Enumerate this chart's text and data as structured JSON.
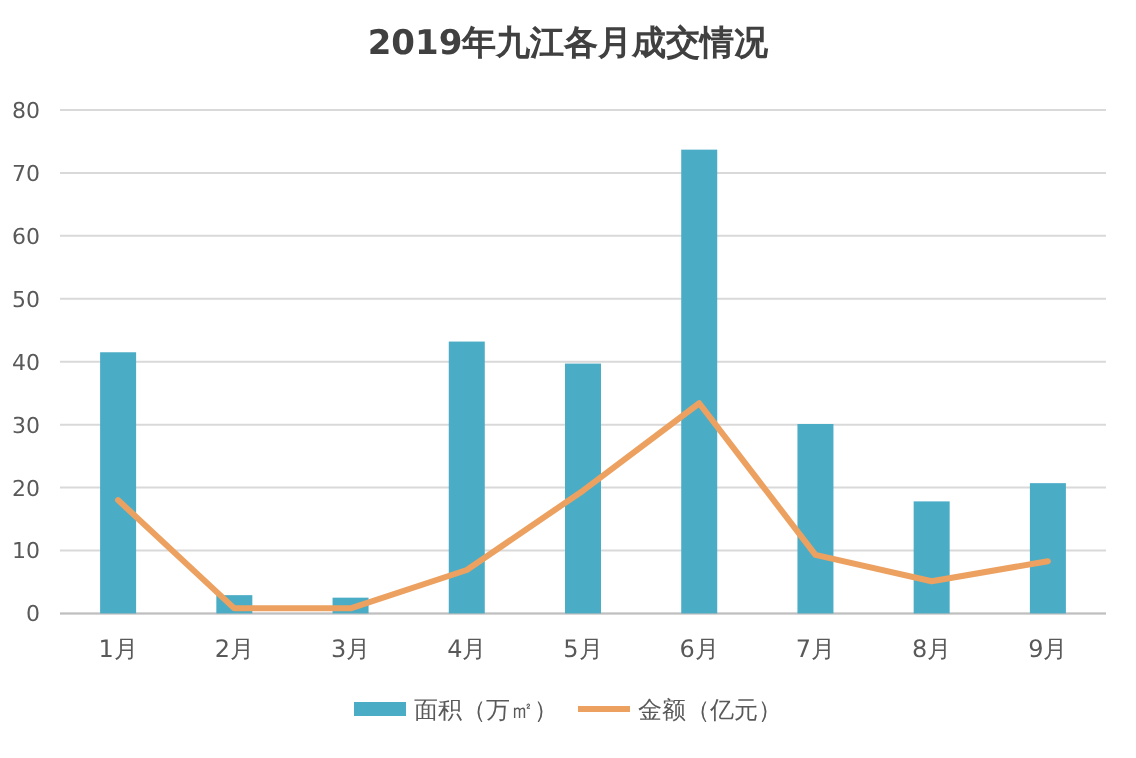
{
  "chart_data": {
    "type": "bar",
    "title": "2019年九江各月成交情况",
    "categories": [
      "1月",
      "2月",
      "3月",
      "4月",
      "5月",
      "6月",
      "7月",
      "8月",
      "9月"
    ],
    "series": [
      {
        "name": "面积（万㎡）",
        "color": "#4bacc6",
        "values": [
          41.5,
          2.9,
          2.5,
          43.2,
          39.7,
          73.7,
          30.1,
          17.8,
          20.7
        ]
      },
      {
        "name": "金额（亿元）",
        "type": "line",
        "color": "#eda160",
        "values": [
          18.0,
          0.8,
          0.8,
          6.9,
          19.5,
          33.4,
          9.3,
          5.1,
          8.3
        ]
      }
    ],
    "ylim": [
      0,
      80
    ],
    "yticks": [
      0,
      10,
      20,
      30,
      40,
      50,
      60,
      70,
      80
    ],
    "grid": "y",
    "legend": "bottom"
  }
}
